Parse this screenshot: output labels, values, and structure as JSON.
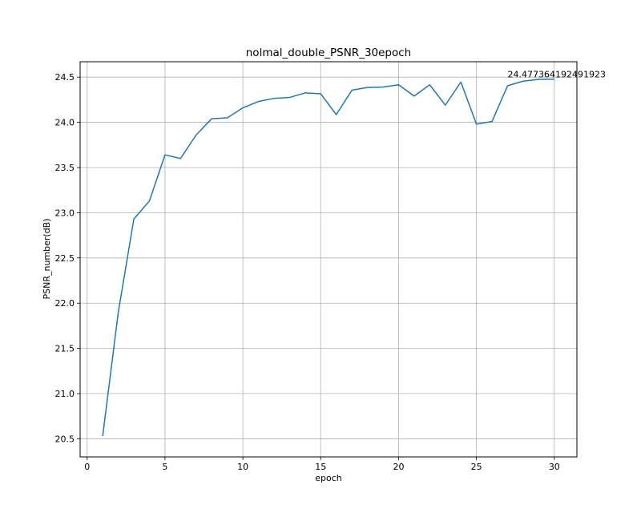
{
  "chart_data": {
    "type": "line",
    "title": "nolmal_double_PSNR_30epoch",
    "xlabel": "epoch",
    "ylabel": "PSNR_number(dB)",
    "xlim": [
      -0.45,
      31.45
    ],
    "ylim": [
      20.3,
      24.67
    ],
    "xticks": [
      0,
      5,
      10,
      15,
      20,
      25,
      30
    ],
    "yticks": [
      20.5,
      21.0,
      21.5,
      22.0,
      22.5,
      23.0,
      23.5,
      24.0,
      24.5
    ],
    "ytick_labels": [
      "20.5",
      "21.0",
      "21.5",
      "22.0",
      "22.5",
      "23.0",
      "23.5",
      "24.0",
      "24.5"
    ],
    "grid": true,
    "series": [
      {
        "color": "#1f77b4",
        "x": [
          1,
          2,
          3,
          4,
          5,
          6,
          7,
          8,
          9,
          10,
          11,
          12,
          13,
          14,
          15,
          16,
          17,
          18,
          19,
          20,
          21,
          22,
          23,
          24,
          25,
          26,
          27,
          28,
          29,
          30
        ],
        "y": [
          20.53,
          21.9,
          22.93,
          23.13,
          23.64,
          23.6,
          23.86,
          24.04,
          24.05,
          24.16,
          24.23,
          24.265,
          24.275,
          24.325,
          24.315,
          24.085,
          24.355,
          24.385,
          24.39,
          24.415,
          24.29,
          24.415,
          24.19,
          24.445,
          23.98,
          24.01,
          24.405,
          24.455,
          24.475,
          24.477364192491923
        ]
      }
    ],
    "annotations": [
      {
        "text": "24.477364192491923",
        "x": 27,
        "y": 24.477364192491923
      }
    ]
  }
}
